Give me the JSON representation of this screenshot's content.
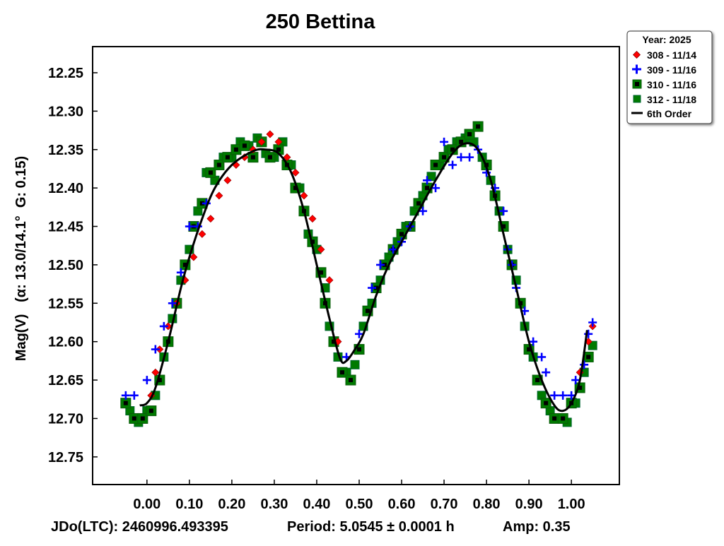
{
  "chart_data": {
    "type": "scatter",
    "title": "250 Bettina",
    "ylabel": "Mag(V)   (α: 13.0/14.1°  G: 0.15)",
    "xlabel": "",
    "footer": {
      "jdo": "JDo(LTC): 2460996.493395",
      "period": "Period: 5.0545 ± 0.0001 h",
      "amp": "Amp: 0.35"
    },
    "xlim": [
      -0.128,
      1.113
    ],
    "ylim": [
      12.786,
      12.216
    ],
    "y_inverted": true,
    "xticks": [
      "0.00",
      "0.10",
      "0.20",
      "0.30",
      "0.40",
      "0.50",
      "0.60",
      "0.70",
      "0.80",
      "0.90",
      "1.00"
    ],
    "yticks": [
      "12.25",
      "12.30",
      "12.35",
      "12.40",
      "12.45",
      "12.50",
      "12.55",
      "12.60",
      "12.65",
      "12.70",
      "12.75"
    ],
    "legend": {
      "title": "Year: 2025",
      "placement": "top-right-outside",
      "entries": [
        "308 - 11/14",
        "309 - 11/16",
        "310 - 11/16",
        "312 - 11/18",
        "6th Order"
      ]
    },
    "colors": {
      "red": "#ff0000",
      "blue": "#0000ff",
      "green": "#007a00",
      "black": "#000000"
    },
    "series": [
      {
        "name": "308 - 11/14",
        "marker": "diamond",
        "points": [
          [
            0.01,
            12.67
          ],
          [
            0.02,
            12.64
          ],
          [
            0.03,
            12.61
          ],
          [
            0.05,
            12.58
          ],
          [
            0.07,
            12.55
          ],
          [
            0.09,
            12.52
          ],
          [
            0.11,
            12.49
          ],
          [
            0.13,
            12.46
          ],
          [
            0.15,
            12.44
          ],
          [
            0.17,
            12.41
          ],
          [
            0.19,
            12.39
          ],
          [
            0.21,
            12.37
          ],
          [
            0.23,
            12.36
          ],
          [
            0.25,
            12.35
          ],
          [
            0.27,
            12.34
          ],
          [
            0.29,
            12.33
          ],
          [
            0.31,
            12.34
          ],
          [
            0.33,
            12.36
          ],
          [
            0.35,
            12.38
          ],
          [
            0.37,
            12.41
          ],
          [
            0.39,
            12.44
          ],
          [
            0.41,
            12.48
          ],
          [
            0.43,
            12.52
          ],
          [
            0.45,
            12.6
          ],
          [
            1.02,
            12.64
          ],
          [
            1.04,
            12.6
          ],
          [
            1.05,
            12.58
          ]
        ]
      },
      {
        "name": "309 - 11/16",
        "marker": "plus",
        "points": [
          [
            -0.05,
            12.67
          ],
          [
            -0.03,
            12.67
          ],
          [
            0.0,
            12.65
          ],
          [
            0.02,
            12.61
          ],
          [
            0.04,
            12.58
          ],
          [
            0.06,
            12.55
          ],
          [
            0.08,
            12.51
          ],
          [
            0.1,
            12.45
          ],
          [
            0.12,
            12.45
          ],
          [
            0.14,
            12.42
          ],
          [
            0.47,
            12.62
          ],
          [
            0.5,
            12.59
          ],
          [
            0.53,
            12.53
          ],
          [
            0.55,
            12.5
          ],
          [
            0.58,
            12.48
          ],
          [
            0.6,
            12.47
          ],
          [
            0.62,
            12.45
          ],
          [
            0.65,
            12.43
          ],
          [
            0.66,
            12.39
          ],
          [
            0.68,
            12.4
          ],
          [
            0.7,
            12.34
          ],
          [
            0.72,
            12.37
          ],
          [
            0.74,
            12.36
          ],
          [
            0.76,
            12.36
          ],
          [
            0.78,
            12.35
          ],
          [
            0.8,
            12.38
          ],
          [
            0.82,
            12.4
          ],
          [
            0.84,
            12.43
          ],
          [
            0.85,
            12.48
          ],
          [
            0.86,
            12.5
          ],
          [
            0.87,
            12.53
          ],
          [
            0.89,
            12.56
          ],
          [
            0.91,
            12.6
          ],
          [
            0.93,
            12.62
          ],
          [
            0.94,
            12.64
          ],
          [
            0.96,
            12.67
          ],
          [
            0.98,
            12.67
          ],
          [
            1.0,
            12.67
          ],
          [
            1.01,
            12.65
          ],
          [
            1.03,
            12.63
          ],
          [
            1.04,
            12.59
          ],
          [
            1.05,
            12.575
          ]
        ]
      },
      {
        "name": "310 - 11/16",
        "marker": "square-dot",
        "points": [
          [
            -0.05,
            12.68
          ],
          [
            -0.03,
            12.7
          ],
          [
            -0.01,
            12.7
          ],
          [
            0.01,
            12.69
          ],
          [
            0.03,
            12.65
          ],
          [
            0.05,
            12.6
          ],
          [
            0.07,
            12.55
          ],
          [
            0.09,
            12.5
          ],
          [
            0.11,
            12.45
          ],
          [
            0.13,
            12.42
          ],
          [
            0.15,
            12.38
          ],
          [
            0.17,
            12.37
          ],
          [
            0.19,
            12.36
          ],
          [
            0.21,
            12.35
          ],
          [
            0.23,
            12.345
          ],
          [
            0.25,
            12.36
          ],
          [
            0.27,
            12.34
          ],
          [
            0.29,
            12.36
          ],
          [
            0.31,
            12.35
          ],
          [
            0.33,
            12.37
          ],
          [
            0.35,
            12.4
          ],
          [
            0.37,
            12.43
          ],
          [
            0.39,
            12.47
          ],
          [
            0.41,
            12.51
          ],
          [
            0.42,
            12.55
          ],
          [
            0.44,
            12.6
          ],
          [
            0.46,
            12.64
          ],
          [
            0.48,
            12.65
          ],
          [
            0.5,
            12.61
          ],
          [
            0.52,
            12.56
          ],
          [
            0.54,
            12.53
          ],
          [
            0.56,
            12.5
          ],
          [
            0.58,
            12.48
          ],
          [
            0.6,
            12.46
          ],
          [
            0.62,
            12.45
          ],
          [
            0.64,
            12.42
          ],
          [
            0.66,
            12.4
          ],
          [
            0.68,
            12.37
          ],
          [
            0.7,
            12.36
          ],
          [
            0.72,
            12.35
          ],
          [
            0.74,
            12.34
          ],
          [
            0.76,
            12.33
          ],
          [
            0.78,
            12.32
          ],
          [
            0.8,
            12.37
          ],
          [
            0.82,
            12.41
          ],
          [
            0.84,
            12.45
          ],
          [
            0.86,
            12.5
          ],
          [
            0.88,
            12.55
          ],
          [
            0.9,
            12.61
          ],
          [
            0.92,
            12.65
          ],
          [
            0.94,
            12.68
          ],
          [
            0.96,
            12.7
          ],
          [
            0.98,
            12.7
          ],
          [
            1.0,
            12.68
          ],
          [
            1.02,
            12.66
          ],
          [
            1.04,
            12.62
          ]
        ]
      },
      {
        "name": "312 - 11/18",
        "marker": "square",
        "points": [
          [
            -0.04,
            12.69
          ],
          [
            -0.02,
            12.705
          ],
          [
            0.0,
            12.69
          ],
          [
            0.02,
            12.67
          ],
          [
            0.04,
            12.62
          ],
          [
            0.06,
            12.57
          ],
          [
            0.08,
            12.52
          ],
          [
            0.1,
            12.48
          ],
          [
            0.12,
            12.43
          ],
          [
            0.14,
            12.38
          ],
          [
            0.16,
            12.39
          ],
          [
            0.18,
            12.36
          ],
          [
            0.2,
            12.36
          ],
          [
            0.22,
            12.34
          ],
          [
            0.24,
            12.345
          ],
          [
            0.26,
            12.335
          ],
          [
            0.28,
            12.355
          ],
          [
            0.3,
            12.36
          ],
          [
            0.32,
            12.34
          ],
          [
            0.34,
            12.37
          ],
          [
            0.36,
            12.4
          ],
          [
            0.38,
            12.46
          ],
          [
            0.4,
            12.48
          ],
          [
            0.42,
            12.53
          ],
          [
            0.43,
            12.58
          ],
          [
            0.45,
            12.62
          ],
          [
            0.47,
            12.64
          ],
          [
            0.49,
            12.63
          ],
          [
            0.51,
            12.58
          ],
          [
            0.53,
            12.55
          ],
          [
            0.55,
            12.52
          ],
          [
            0.57,
            12.49
          ],
          [
            0.59,
            12.47
          ],
          [
            0.61,
            12.45
          ],
          [
            0.63,
            12.43
          ],
          [
            0.65,
            12.41
          ],
          [
            0.67,
            12.385
          ],
          [
            0.69,
            12.37
          ],
          [
            0.71,
            12.35
          ],
          [
            0.73,
            12.34
          ],
          [
            0.75,
            12.335
          ],
          [
            0.77,
            12.34
          ],
          [
            0.79,
            12.36
          ],
          [
            0.81,
            12.39
          ],
          [
            0.83,
            12.43
          ],
          [
            0.85,
            12.48
          ],
          [
            0.87,
            12.52
          ],
          [
            0.89,
            12.58
          ],
          [
            0.91,
            12.62
          ],
          [
            0.93,
            12.67
          ],
          [
            0.95,
            12.69
          ],
          [
            0.97,
            12.7
          ],
          [
            0.99,
            12.705
          ],
          [
            1.01,
            12.68
          ],
          [
            1.03,
            12.64
          ],
          [
            1.05,
            12.605
          ]
        ]
      }
    ],
    "fit": {
      "name": "6th Order",
      "points": [
        [
          -0.017,
          12.683
        ],
        [
          0.0,
          12.68
        ],
        [
          0.02,
          12.66
        ],
        [
          0.05,
          12.6
        ],
        [
          0.08,
          12.53
        ],
        [
          0.1,
          12.49
        ],
        [
          0.13,
          12.44
        ],
        [
          0.16,
          12.4
        ],
        [
          0.2,
          12.37
        ],
        [
          0.25,
          12.352
        ],
        [
          0.28,
          12.35
        ],
        [
          0.31,
          12.355
        ],
        [
          0.34,
          12.38
        ],
        [
          0.37,
          12.43
        ],
        [
          0.4,
          12.5
        ],
        [
          0.43,
          12.57
        ],
        [
          0.455,
          12.622
        ],
        [
          0.47,
          12.625
        ],
        [
          0.49,
          12.61
        ],
        [
          0.51,
          12.59
        ],
        [
          0.54,
          12.54
        ],
        [
          0.57,
          12.5
        ],
        [
          0.6,
          12.47
        ],
        [
          0.64,
          12.43
        ],
        [
          0.68,
          12.39
        ],
        [
          0.72,
          12.355
        ],
        [
          0.75,
          12.342
        ],
        [
          0.78,
          12.35
        ],
        [
          0.81,
          12.39
        ],
        [
          0.84,
          12.46
        ],
        [
          0.87,
          12.53
        ],
        [
          0.9,
          12.6
        ],
        [
          0.93,
          12.65
        ],
        [
          0.96,
          12.683
        ],
        [
          0.98,
          12.69
        ],
        [
          1.0,
          12.68
        ],
        [
          1.02,
          12.65
        ],
        [
          1.037,
          12.585
        ]
      ]
    }
  }
}
